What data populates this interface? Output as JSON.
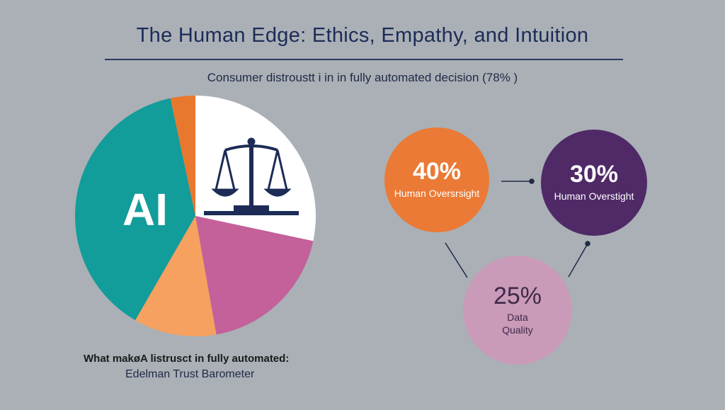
{
  "title": "The Human Edge: Ethics, Empathy, and Intuition",
  "subtitle": "Consumer distroustt i in in fully automated decision (78% )",
  "pie": {
    "label": "AI",
    "icon": "scales-of-justice-icon",
    "slices": [
      {
        "name": "white",
        "color": "#ffffff"
      },
      {
        "name": "pink",
        "color": "#c4609a"
      },
      {
        "name": "light-orange",
        "color": "#f6a15f"
      },
      {
        "name": "teal",
        "color": "#129c9a"
      },
      {
        "name": "orange",
        "color": "#e9782f"
      }
    ]
  },
  "circles": [
    {
      "percent": "40%",
      "label": "Human Oversrsight",
      "color": "#ea7a35"
    },
    {
      "percent": "30%",
      "label": "Human Overstight",
      "color": "#4f2a67"
    },
    {
      "percent": "25%",
      "label": "Data Quality",
      "color": "#c99bb8"
    }
  ],
  "footer": {
    "line1": "What makøA listrusct in fully automated:",
    "line2": "Edelman Trust Barometer"
  }
}
